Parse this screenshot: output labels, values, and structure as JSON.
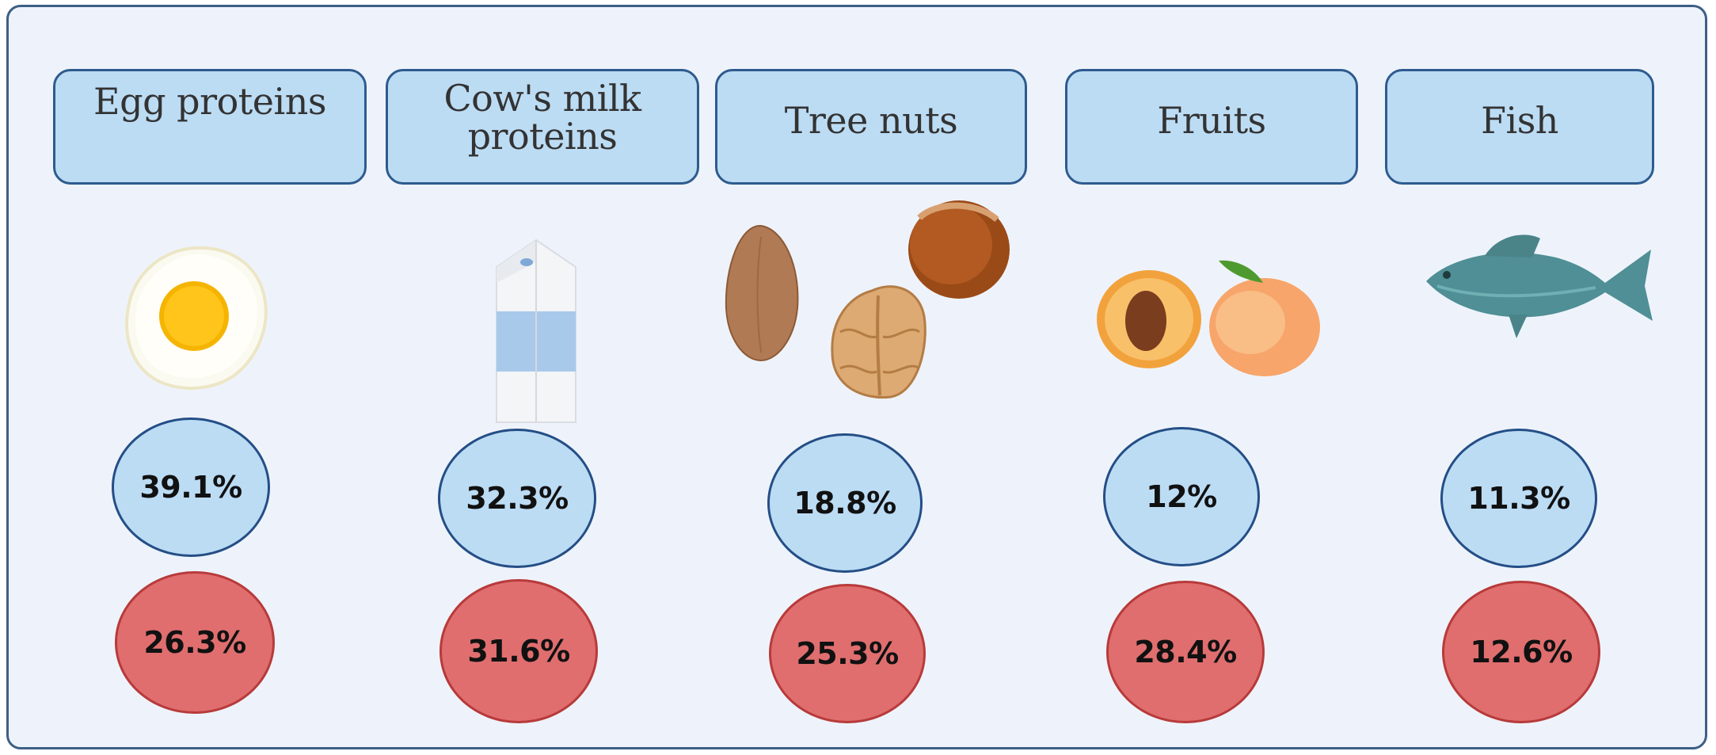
{
  "items": [
    {
      "label": "Egg proteins",
      "illustration": "fried-egg",
      "blue_pct": "39.1%",
      "red_pct": "26.3%"
    },
    {
      "label": "Cow's milk\nproteins",
      "illustration": "milk-carton",
      "blue_pct": "32.3%",
      "red_pct": "31.6%"
    },
    {
      "label": "Tree nuts",
      "illustration": "almond-walnut-hazelnut",
      "blue_pct": "18.8%",
      "red_pct": "25.3%"
    },
    {
      "label": "Fruits",
      "illustration": "peaches",
      "blue_pct": "12%",
      "red_pct": "28.4%"
    },
    {
      "label": "Fish",
      "illustration": "fish",
      "blue_pct": "11.3%",
      "red_pct": "12.6%"
    }
  ],
  "colors": {
    "panel_bg": "#eef3fb",
    "panel_border": "#3d5f86",
    "label_fill": "#bcdcf4",
    "label_border": "#2e5b8e",
    "blue_fill": "#bcdcf4",
    "blue_border": "#244e86",
    "red_fill": "#e06e6f",
    "red_border": "#b83a3a"
  }
}
